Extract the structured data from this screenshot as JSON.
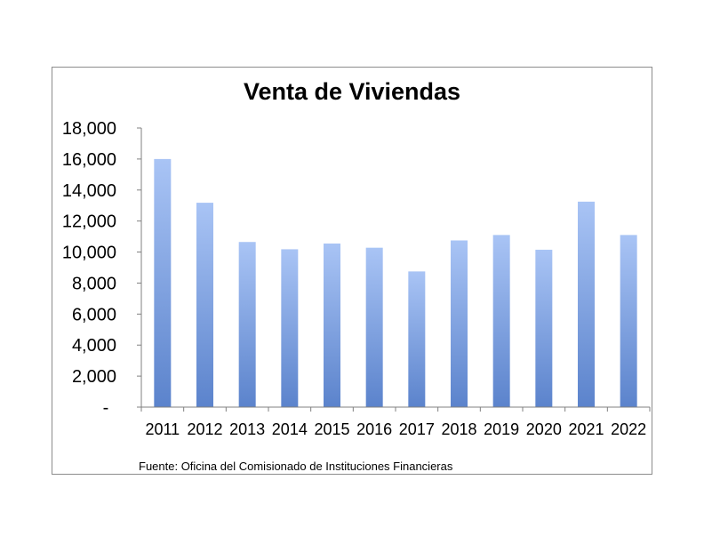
{
  "chart_data": {
    "type": "bar",
    "title": "Venta de Viviendas",
    "categories": [
      "2011",
      "2012",
      "2013",
      "2014",
      "2015",
      "2016",
      "2017",
      "2018",
      "2019",
      "2020",
      "2021",
      "2022"
    ],
    "values": [
      16000,
      13180,
      10650,
      10180,
      10550,
      10280,
      8750,
      10750,
      11100,
      10150,
      13250,
      11100
    ],
    "ylim": [
      0,
      18000
    ],
    "yticks": [
      0,
      2000,
      4000,
      6000,
      8000,
      10000,
      12000,
      14000,
      16000,
      18000
    ],
    "ytick_labels": [
      "-",
      "2,000",
      "4,000",
      "6,000",
      "8,000",
      "10,000",
      "12,000",
      "14,000",
      "16,000",
      "18,000"
    ],
    "xlabel": "",
    "ylabel": "",
    "grid": false,
    "legend": "none",
    "source": "Fuente: Oficina del Comisionado de Instituciones Financieras",
    "colors": {
      "bar_top": "#a9c4f5",
      "bar_bottom": "#5b83cc",
      "axis": "#808080",
      "frame": "#8c8c8c"
    }
  }
}
